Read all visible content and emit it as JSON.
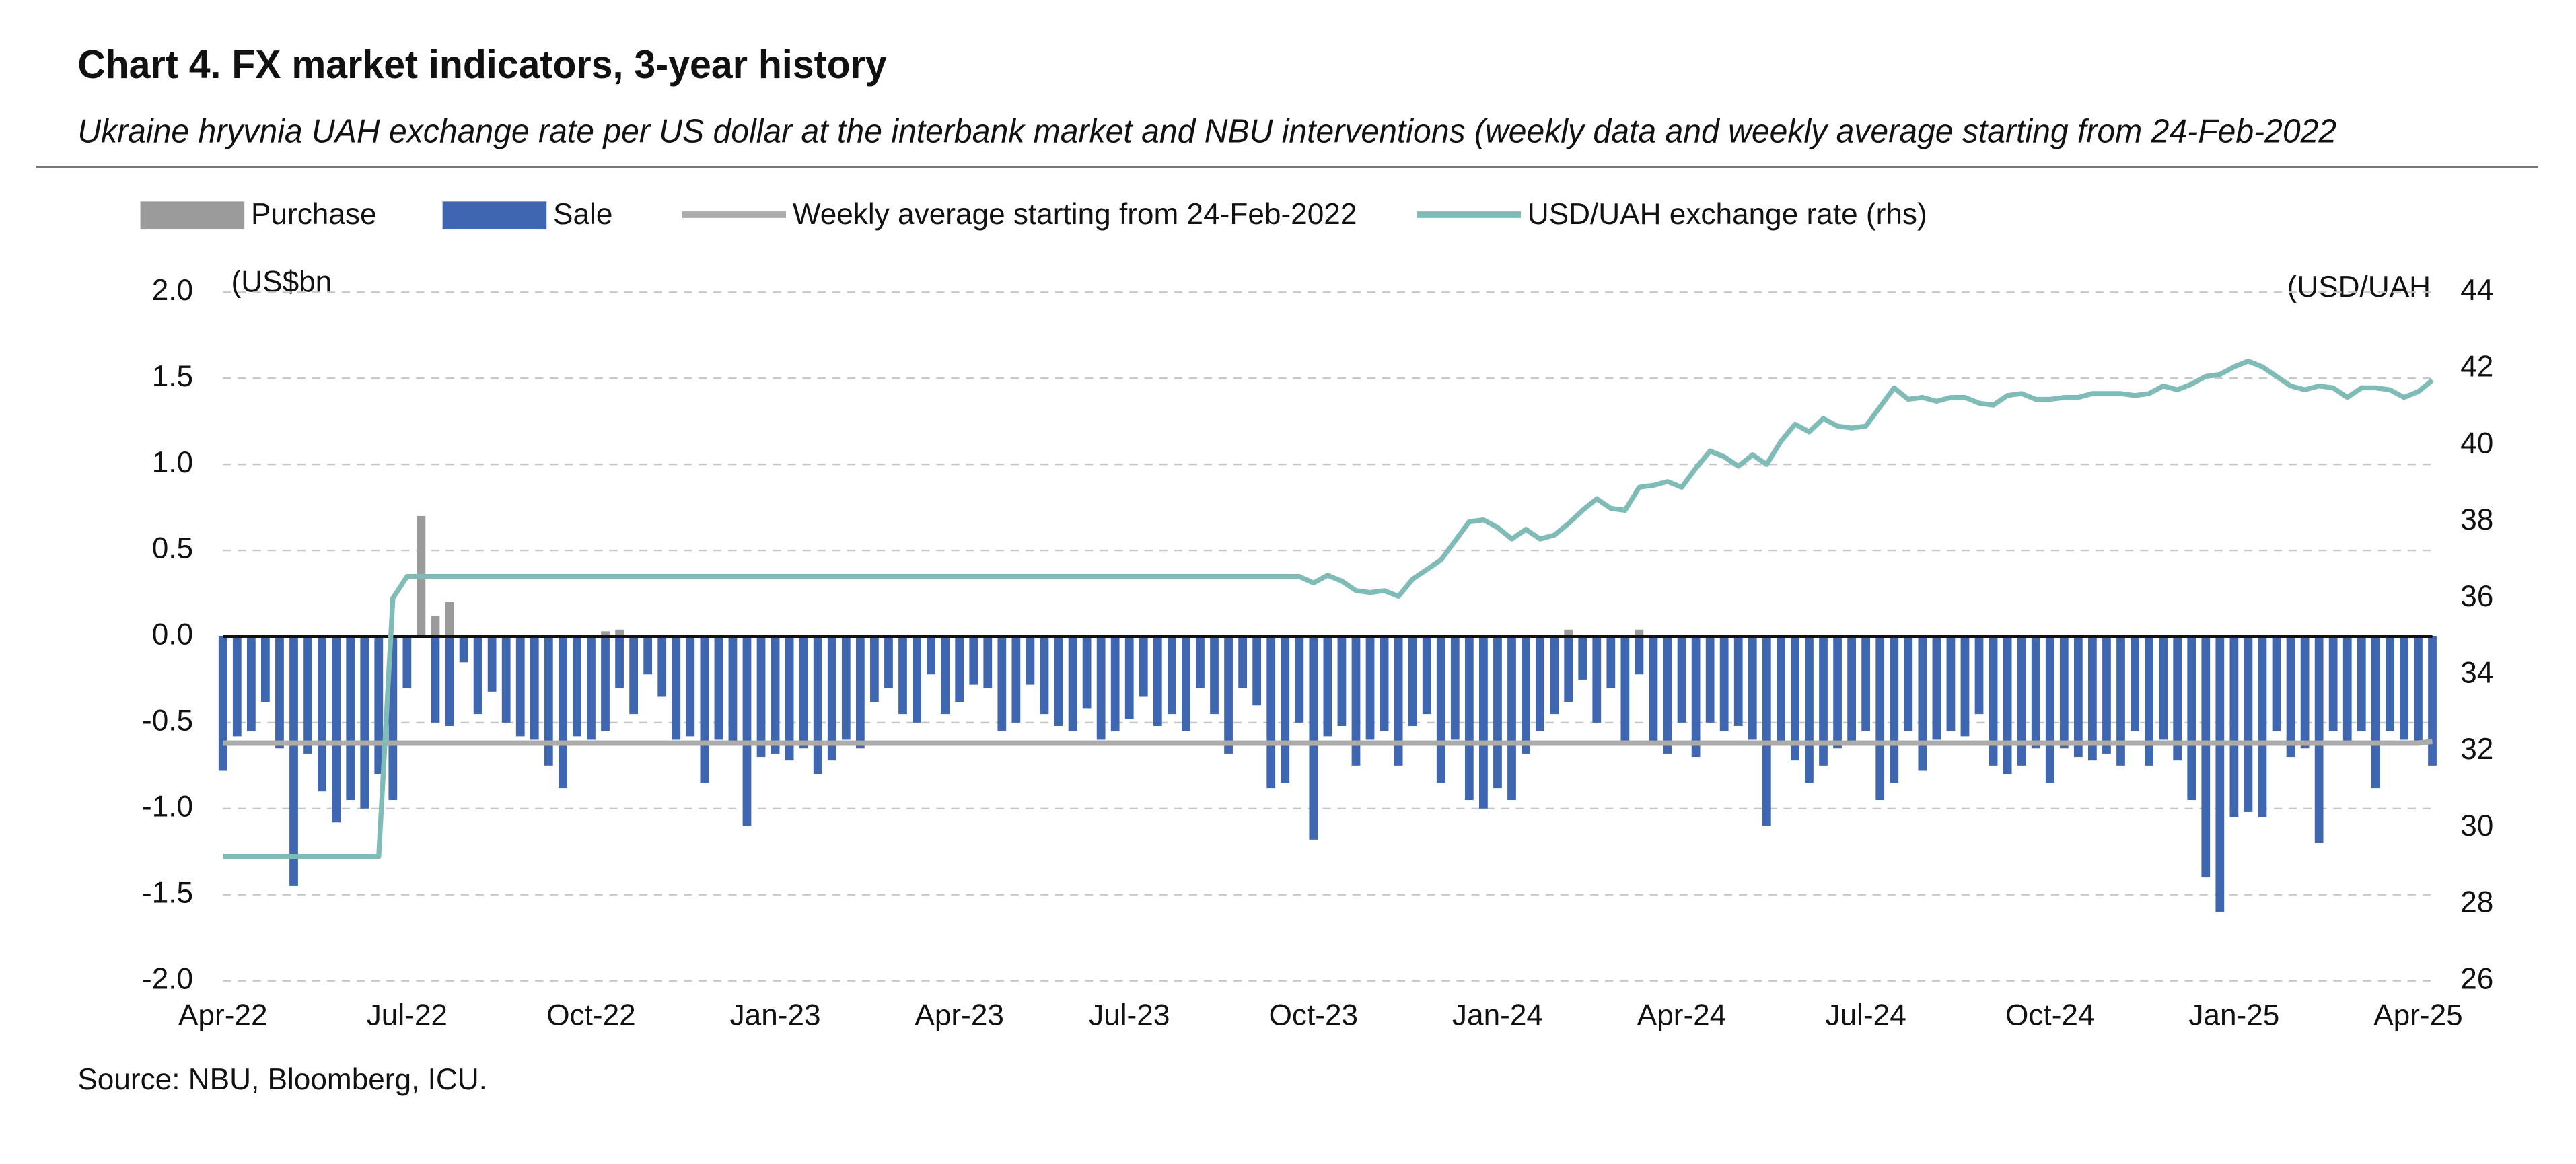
{
  "chart_data": {
    "type": "bar",
    "title": "Chart 4. FX market indicators, 3-year history",
    "subtitle": "Ukraine hryvnia UAH exchange rate per US dollar at the interbank market and NBU interventions (weekly data and weekly average starting from 24-Feb-2022",
    "source": "Source: NBU, Bloomberg, ICU.",
    "y_unit_label": "(US$bn",
    "y2_unit_label": "(USD/UAH",
    "grid": true,
    "ylim": [
      -2,
      2
    ],
    "yticks": [
      {
        "value": 2,
        "label": "2.0"
      },
      1.5,
      {
        "value": 1,
        "label": "1.0"
      },
      0.5,
      {
        "value": 0,
        "label": "0.0"
      },
      -0.5,
      {
        "value": -1,
        "label": "-1.0"
      },
      -1.5,
      {
        "value": -2,
        "label": "-2.0"
      }
    ],
    "y2lim": [
      26,
      44
    ],
    "y2ticks": [
      26,
      28,
      30,
      32,
      34,
      36,
      38,
      40,
      42,
      44
    ],
    "categories": [
      "Apr-22",
      null,
      null,
      null,
      null,
      null,
      null,
      null,
      null,
      null,
      null,
      null,
      null,
      "Jul-22",
      null,
      null,
      null,
      null,
      null,
      null,
      null,
      null,
      null,
      null,
      null,
      null,
      "Oct-22",
      null,
      null,
      null,
      null,
      null,
      null,
      null,
      null,
      null,
      null,
      null,
      null,
      "Jan-23",
      null,
      null,
      null,
      null,
      null,
      null,
      null,
      null,
      null,
      null,
      null,
      null,
      "Apr-23",
      null,
      null,
      null,
      null,
      null,
      null,
      null,
      null,
      null,
      null,
      null,
      "Jul-23",
      null,
      null,
      null,
      null,
      null,
      null,
      null,
      null,
      null,
      null,
      null,
      null,
      "Oct-23",
      null,
      null,
      null,
      null,
      null,
      null,
      null,
      null,
      null,
      null,
      null,
      null,
      "Jan-24",
      null,
      null,
      null,
      null,
      null,
      null,
      null,
      null,
      null,
      null,
      null,
      null,
      "Apr-24",
      null,
      null,
      null,
      null,
      null,
      null,
      null,
      null,
      null,
      null,
      null,
      null,
      "Jul-24",
      null,
      null,
      null,
      null,
      null,
      null,
      null,
      null,
      null,
      null,
      null,
      null,
      "Oct-24",
      null,
      null,
      null,
      null,
      null,
      null,
      null,
      null,
      null,
      null,
      null,
      null,
      "Jan-25",
      null,
      null,
      null,
      null,
      null,
      null,
      null,
      null,
      null,
      null,
      null,
      null,
      "Apr-25",
      null
    ],
    "series": [
      {
        "name": "Purchase",
        "type": "bar",
        "color": "#9b9b9b",
        "values": [
          null,
          null,
          null,
          null,
          null,
          null,
          null,
          null,
          null,
          null,
          null,
          null,
          null,
          null,
          0.7,
          0.12,
          0.2,
          null,
          null,
          null,
          null,
          null,
          null,
          null,
          null,
          null,
          null,
          0.03,
          0.04,
          null,
          null,
          null,
          null,
          null,
          null,
          null,
          null,
          null,
          null,
          null,
          null,
          null,
          null,
          null,
          null,
          null,
          null,
          null,
          null,
          null,
          null,
          null,
          null,
          null,
          null,
          null,
          null,
          null,
          null,
          null,
          null,
          null,
          null,
          null,
          null,
          null,
          null,
          null,
          null,
          null,
          null,
          null,
          null,
          null,
          null,
          null,
          null,
          null,
          null,
          null,
          null,
          null,
          null,
          null,
          null,
          null,
          null,
          null,
          null,
          null,
          null,
          null,
          null,
          null,
          null,
          0.04,
          null,
          null,
          null,
          null,
          0.04,
          null,
          null,
          null,
          null,
          null,
          null,
          null,
          null,
          null,
          null,
          null,
          null,
          null,
          null,
          null,
          null,
          null,
          null,
          null,
          null,
          null,
          null,
          null,
          null,
          null,
          null,
          null,
          null,
          null,
          null,
          null,
          null,
          null,
          null,
          null,
          null,
          null,
          null,
          null,
          null,
          null,
          null,
          null,
          null,
          null,
          null,
          null,
          null,
          null,
          null,
          null,
          null,
          null,
          null,
          null,
          null
        ]
      },
      {
        "name": "Sale",
        "type": "bar",
        "color": "#3f67b1",
        "values": [
          -0.78,
          -0.58,
          -0.55,
          -0.38,
          -0.65,
          -1.45,
          -0.68,
          -0.9,
          -1.08,
          -0.95,
          -1.0,
          -0.8,
          -0.95,
          -0.3,
          null,
          -0.5,
          -0.52,
          -0.15,
          -0.45,
          -0.32,
          -0.5,
          -0.58,
          -0.6,
          -0.75,
          -0.88,
          -0.58,
          -0.6,
          -0.55,
          -0.3,
          -0.45,
          -0.22,
          -0.35,
          -0.6,
          -0.58,
          -0.85,
          -0.6,
          -0.62,
          -1.1,
          -0.7,
          -0.68,
          -0.72,
          -0.65,
          -0.8,
          -0.72,
          -0.6,
          -0.65,
          -0.38,
          -0.3,
          -0.45,
          -0.5,
          -0.22,
          -0.45,
          -0.38,
          -0.28,
          -0.3,
          -0.55,
          -0.5,
          -0.28,
          -0.45,
          -0.52,
          -0.55,
          -0.42,
          -0.6,
          -0.55,
          -0.48,
          -0.35,
          -0.52,
          -0.45,
          -0.55,
          -0.3,
          -0.45,
          -0.68,
          -0.3,
          -0.4,
          -0.88,
          -0.85,
          -0.5,
          -1.18,
          -0.58,
          -0.52,
          -0.75,
          -0.6,
          -0.55,
          -0.75,
          -0.52,
          -0.45,
          -0.85,
          -0.6,
          -0.95,
          -1.0,
          -0.88,
          -0.95,
          -0.68,
          -0.55,
          -0.45,
          -0.38,
          -0.25,
          -0.5,
          -0.3,
          -0.62,
          -0.22,
          -0.62,
          -0.68,
          -0.5,
          -0.7,
          -0.5,
          -0.55,
          -0.52,
          -0.6,
          -1.1,
          -0.62,
          -0.72,
          -0.85,
          -0.75,
          -0.65,
          -0.62,
          -0.55,
          -0.95,
          -0.85,
          -0.55,
          -0.78,
          -0.6,
          -0.55,
          -0.58,
          -0.45,
          -0.75,
          -0.8,
          -0.75,
          -0.65,
          -0.85,
          -0.65,
          -0.7,
          -0.72,
          -0.68,
          -0.75,
          -0.55,
          -0.75,
          -0.6,
          -0.72,
          -0.95,
          -1.4,
          -1.6,
          -1.05,
          -1.02,
          -1.05,
          -0.55,
          -0.7,
          -0.65,
          -1.2,
          -0.55,
          -0.62,
          -0.55,
          -0.88,
          -0.55,
          -0.6,
          -0.62,
          -0.75
        ]
      },
      {
        "name": "Weekly average starting from 24-Feb-2022",
        "type": "line",
        "color": "#ababab",
        "values": [
          -0.62,
          -0.62,
          -0.62,
          -0.62,
          -0.62,
          -0.62,
          -0.62,
          -0.62,
          -0.62,
          -0.62,
          -0.62,
          -0.62,
          -0.62,
          -0.62,
          -0.62,
          -0.62,
          -0.62,
          -0.62,
          -0.62,
          -0.62,
          -0.62,
          -0.62,
          -0.62,
          -0.62,
          -0.62,
          -0.62,
          -0.62,
          -0.62,
          -0.62,
          -0.62,
          -0.62,
          -0.62,
          -0.62,
          -0.62,
          -0.62,
          -0.62,
          -0.62,
          -0.62,
          -0.62,
          -0.62,
          -0.62,
          -0.62,
          -0.62,
          -0.62,
          -0.62,
          -0.62,
          -0.62,
          -0.62,
          -0.62,
          -0.62,
          -0.62,
          -0.62,
          -0.62,
          -0.62,
          -0.62,
          -0.62,
          -0.62,
          -0.62,
          -0.62,
          -0.62,
          -0.62,
          -0.62,
          -0.62,
          -0.62,
          -0.62,
          -0.62,
          -0.62,
          -0.62,
          -0.62,
          -0.62,
          -0.62,
          -0.62,
          -0.62,
          -0.62,
          -0.62,
          -0.62,
          -0.62,
          -0.62,
          -0.62,
          -0.62,
          -0.62,
          -0.62,
          -0.62,
          -0.62,
          -0.62,
          -0.62,
          -0.62,
          -0.62,
          -0.62,
          -0.62,
          -0.62,
          -0.62,
          -0.62,
          -0.62,
          -0.62,
          -0.62,
          -0.62,
          -0.62,
          -0.62,
          -0.62,
          -0.62,
          -0.62,
          -0.62,
          -0.62,
          -0.62,
          -0.62,
          -0.62,
          -0.62,
          -0.62,
          -0.62,
          -0.62,
          -0.62,
          -0.62,
          -0.62,
          -0.62,
          -0.62,
          -0.62,
          -0.62,
          -0.62,
          -0.62,
          -0.62,
          -0.62,
          -0.62,
          -0.62,
          -0.62,
          -0.62,
          -0.62,
          -0.62,
          -0.62,
          -0.62,
          -0.62,
          -0.62,
          -0.62,
          -0.62,
          -0.62,
          -0.62,
          -0.62,
          -0.62,
          -0.62,
          -0.62,
          -0.62,
          -0.62,
          -0.62,
          -0.62,
          -0.62,
          -0.62,
          -0.62,
          -0.62,
          -0.62,
          -0.62,
          -0.62,
          -0.62,
          -0.62,
          -0.62,
          -0.62,
          -0.62,
          -0.61
        ]
      },
      {
        "name": "USD/UAH exchange rate (rhs)",
        "type": "line",
        "axis": "y2",
        "color": "#7fbcb8",
        "values": [
          29.25,
          29.25,
          29.25,
          29.25,
          29.25,
          29.25,
          29.25,
          29.25,
          29.25,
          29.25,
          29.25,
          29.25,
          36.0,
          36.57,
          36.57,
          36.57,
          36.57,
          36.57,
          36.57,
          36.57,
          36.57,
          36.57,
          36.57,
          36.57,
          36.57,
          36.57,
          36.57,
          36.57,
          36.57,
          36.57,
          36.57,
          36.57,
          36.57,
          36.57,
          36.57,
          36.57,
          36.57,
          36.57,
          36.57,
          36.57,
          36.57,
          36.57,
          36.57,
          36.57,
          36.57,
          36.57,
          36.57,
          36.57,
          36.57,
          36.57,
          36.57,
          36.57,
          36.57,
          36.57,
          36.57,
          36.57,
          36.57,
          36.57,
          36.57,
          36.57,
          36.57,
          36.57,
          36.57,
          36.57,
          36.57,
          36.57,
          36.57,
          36.57,
          36.57,
          36.57,
          36.57,
          36.57,
          36.57,
          36.57,
          36.57,
          36.57,
          36.57,
          36.4,
          36.6,
          36.45,
          36.2,
          36.15,
          36.2,
          36.05,
          36.5,
          36.75,
          37.0,
          37.5,
          38.0,
          38.05,
          37.85,
          37.55,
          37.8,
          37.55,
          37.65,
          37.95,
          38.3,
          38.6,
          38.35,
          38.3,
          38.9,
          38.95,
          39.05,
          38.9,
          39.4,
          39.85,
          39.7,
          39.45,
          39.75,
          39.5,
          40.1,
          40.55,
          40.35,
          40.7,
          40.5,
          40.45,
          40.5,
          41.0,
          41.5,
          41.2,
          41.25,
          41.15,
          41.25,
          41.25,
          41.1,
          41.05,
          41.3,
          41.35,
          41.2,
          41.2,
          41.25,
          41.25,
          41.35,
          41.35,
          41.35,
          41.3,
          41.35,
          41.55,
          41.45,
          41.6,
          41.8,
          41.85,
          42.05,
          42.2,
          42.05,
          41.8,
          41.55,
          41.45,
          41.55,
          41.5,
          41.25,
          41.5,
          41.5,
          41.45,
          41.25,
          41.4,
          41.7
        ]
      }
    ]
  }
}
